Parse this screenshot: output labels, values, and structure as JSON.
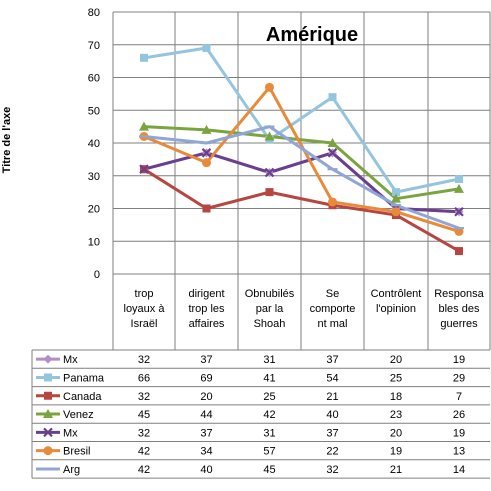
{
  "chart_data": {
    "type": "line",
    "title": "Amérique",
    "ylabel": "Titre de l'axe",
    "ylim": [
      0,
      80
    ],
    "yticks": [
      0,
      10,
      20,
      30,
      40,
      50,
      60,
      70,
      80
    ],
    "grid": true,
    "legend": "data-table",
    "categories": [
      [
        "trop",
        "loyaux à",
        "Israël"
      ],
      [
        "dirigent",
        "trop les",
        "affaires"
      ],
      [
        "Obnubilés",
        "par la",
        "Shoah"
      ],
      [
        "Se",
        "comporte",
        "nt mal"
      ],
      [
        "Contrôlent",
        "l'opinion"
      ],
      [
        "Responsa",
        "bles des",
        "guerres"
      ]
    ],
    "series": [
      {
        "name": "Mx",
        "values": [
          32,
          37,
          31,
          37,
          20,
          19
        ],
        "color": "#b48ec8",
        "marker": "diamond"
      },
      {
        "name": "Panama",
        "values": [
          66,
          69,
          41,
          54,
          25,
          29
        ],
        "color": "#93c5de",
        "marker": "square"
      },
      {
        "name": "Canada",
        "values": [
          32,
          20,
          25,
          21,
          18,
          7
        ],
        "color": "#b6463f",
        "marker": "square"
      },
      {
        "name": "Venez",
        "values": [
          45,
          44,
          42,
          40,
          23,
          26
        ],
        "color": "#79a43f",
        "marker": "triangle"
      },
      {
        "name": "Mx",
        "values": [
          32,
          37,
          31,
          37,
          20,
          19
        ],
        "color": "#6a3f8e",
        "marker": "x"
      },
      {
        "name": "Bresil",
        "values": [
          42,
          34,
          57,
          22,
          19,
          13
        ],
        "color": "#e88a3a",
        "marker": "circle"
      },
      {
        "name": "Arg",
        "values": [
          42,
          40,
          45,
          32,
          21,
          14
        ],
        "color": "#8fa6d6",
        "marker": "plus"
      }
    ],
    "plotted_values": [
      [
        32,
        37,
        31,
        37,
        20,
        19
      ],
      [
        66,
        69,
        41,
        54,
        25,
        29
      ],
      [
        32,
        20,
        25,
        21,
        18,
        7
      ],
      [
        45,
        44,
        42,
        40,
        23,
        26
      ],
      [
        32,
        37,
        31,
        37,
        20,
        19
      ],
      [
        42,
        34,
        57,
        22,
        19,
        13
      ],
      [
        42,
        40,
        45,
        32,
        21,
        14
      ]
    ]
  }
}
